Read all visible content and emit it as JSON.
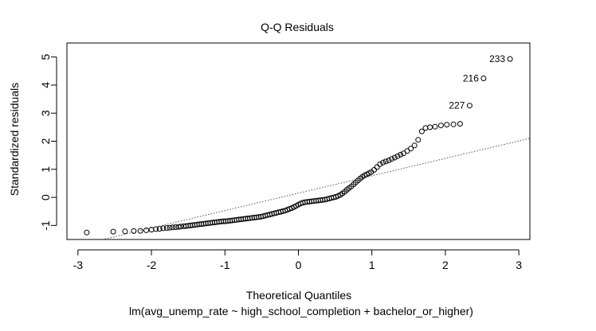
{
  "chart_data": {
    "type": "scatter",
    "title": "Q-Q Residuals",
    "xlabel": "Theoretical Quantiles",
    "ylabel": "Standardized residuals",
    "subtitle": "lm(avg_unemp_rate ~ high_school_completion + bachelor_or_higher)",
    "xlim": [
      -3.15,
      3.15
    ],
    "ylim": [
      -1.5,
      5.5
    ],
    "xticks": [
      -3,
      -2,
      -1,
      0,
      1,
      2,
      3
    ],
    "yticks": [
      -1,
      0,
      1,
      2,
      3,
      4,
      5
    ],
    "grid": false,
    "reference_line": {
      "intercept": 0.15,
      "slope": 0.62,
      "style": "dotted"
    },
    "points": [
      [
        -2.88,
        -1.25
      ],
      [
        -2.52,
        -1.22
      ],
      [
        -2.36,
        -1.21
      ],
      [
        -2.24,
        -1.2
      ],
      [
        -2.15,
        -1.19
      ],
      [
        -2.07,
        -1.17
      ],
      [
        -2.0,
        -1.15
      ],
      [
        -1.94,
        -1.13
      ],
      [
        -1.89,
        -1.12
      ],
      [
        -1.84,
        -1.1
      ],
      [
        -1.79,
        -1.09
      ],
      [
        -1.75,
        -1.08
      ],
      [
        -1.71,
        -1.07
      ],
      [
        -1.67,
        -1.06
      ],
      [
        -1.63,
        -1.05
      ],
      [
        -1.6,
        -1.04
      ],
      [
        -1.56,
        -1.03
      ],
      [
        -1.53,
        -1.02
      ],
      [
        -1.5,
        -1.01
      ],
      [
        -1.47,
        -1.0
      ],
      [
        -1.44,
        -0.99
      ],
      [
        -1.41,
        -0.98
      ],
      [
        -1.38,
        -0.97
      ],
      [
        -1.35,
        -0.96
      ],
      [
        -1.32,
        -0.95
      ],
      [
        -1.29,
        -0.94
      ],
      [
        -1.26,
        -0.93
      ],
      [
        -1.23,
        -0.92
      ],
      [
        -1.2,
        -0.91
      ],
      [
        -1.17,
        -0.9
      ],
      [
        -1.14,
        -0.89
      ],
      [
        -1.11,
        -0.88
      ],
      [
        -1.08,
        -0.87
      ],
      [
        -1.05,
        -0.86
      ],
      [
        -1.02,
        -0.85
      ],
      [
        -0.99,
        -0.85
      ],
      [
        -0.96,
        -0.84
      ],
      [
        -0.93,
        -0.83
      ],
      [
        -0.9,
        -0.82
      ],
      [
        -0.87,
        -0.81
      ],
      [
        -0.84,
        -0.8
      ],
      [
        -0.81,
        -0.79
      ],
      [
        -0.78,
        -0.78
      ],
      [
        -0.75,
        -0.77
      ],
      [
        -0.72,
        -0.76
      ],
      [
        -0.69,
        -0.75
      ],
      [
        -0.66,
        -0.74
      ],
      [
        -0.63,
        -0.73
      ],
      [
        -0.6,
        -0.72
      ],
      [
        -0.57,
        -0.71
      ],
      [
        -0.54,
        -0.7
      ],
      [
        -0.51,
        -0.69
      ],
      [
        -0.48,
        -0.67
      ],
      [
        -0.45,
        -0.65
      ],
      [
        -0.42,
        -0.63
      ],
      [
        -0.39,
        -0.61
      ],
      [
        -0.36,
        -0.59
      ],
      [
        -0.33,
        -0.57
      ],
      [
        -0.3,
        -0.55
      ],
      [
        -0.27,
        -0.53
      ],
      [
        -0.24,
        -0.51
      ],
      [
        -0.21,
        -0.49
      ],
      [
        -0.18,
        -0.47
      ],
      [
        -0.15,
        -0.44
      ],
      [
        -0.12,
        -0.41
      ],
      [
        -0.09,
        -0.38
      ],
      [
        -0.06,
        -0.34
      ],
      [
        -0.03,
        -0.3
      ],
      [
        0.0,
        -0.26
      ],
      [
        0.03,
        -0.22
      ],
      [
        0.06,
        -0.19
      ],
      [
        0.09,
        -0.17
      ],
      [
        0.12,
        -0.16
      ],
      [
        0.15,
        -0.15
      ],
      [
        0.18,
        -0.14
      ],
      [
        0.21,
        -0.13
      ],
      [
        0.24,
        -0.12
      ],
      [
        0.27,
        -0.11
      ],
      [
        0.3,
        -0.1
      ],
      [
        0.33,
        -0.09
      ],
      [
        0.36,
        -0.08
      ],
      [
        0.39,
        -0.06
      ],
      [
        0.42,
        -0.04
      ],
      [
        0.45,
        -0.02
      ],
      [
        0.48,
        0.0
      ],
      [
        0.51,
        0.02
      ],
      [
        0.54,
        0.05
      ],
      [
        0.57,
        0.09
      ],
      [
        0.6,
        0.14
      ],
      [
        0.63,
        0.2
      ],
      [
        0.66,
        0.27
      ],
      [
        0.69,
        0.33
      ],
      [
        0.72,
        0.39
      ],
      [
        0.75,
        0.46
      ],
      [
        0.78,
        0.53
      ],
      [
        0.81,
        0.6
      ],
      [
        0.84,
        0.67
      ],
      [
        0.87,
        0.73
      ],
      [
        0.9,
        0.78
      ],
      [
        0.93,
        0.82
      ],
      [
        0.96,
        0.86
      ],
      [
        0.99,
        0.9
      ],
      [
        1.03,
        0.98
      ],
      [
        1.07,
        1.08
      ],
      [
        1.11,
        1.18
      ],
      [
        1.15,
        1.24
      ],
      [
        1.19,
        1.28
      ],
      [
        1.23,
        1.32
      ],
      [
        1.27,
        1.37
      ],
      [
        1.31,
        1.42
      ],
      [
        1.35,
        1.47
      ],
      [
        1.39,
        1.52
      ],
      [
        1.43,
        1.57
      ],
      [
        1.48,
        1.65
      ],
      [
        1.53,
        1.74
      ],
      [
        1.58,
        1.85
      ],
      [
        1.63,
        2.05
      ],
      [
        1.68,
        2.35
      ],
      [
        1.73,
        2.47
      ],
      [
        1.79,
        2.5
      ],
      [
        1.86,
        2.52
      ],
      [
        1.94,
        2.56
      ],
      [
        2.02,
        2.59
      ],
      [
        2.11,
        2.6
      ],
      [
        2.2,
        2.62
      ],
      [
        2.33,
        3.27
      ],
      [
        2.52,
        4.24
      ],
      [
        2.88,
        4.93
      ]
    ],
    "point_labels": [
      {
        "text": "227",
        "x": 2.33,
        "y": 3.27
      },
      {
        "text": "216",
        "x": 2.52,
        "y": 4.24
      },
      {
        "text": "233",
        "x": 2.88,
        "y": 4.93
      }
    ]
  }
}
